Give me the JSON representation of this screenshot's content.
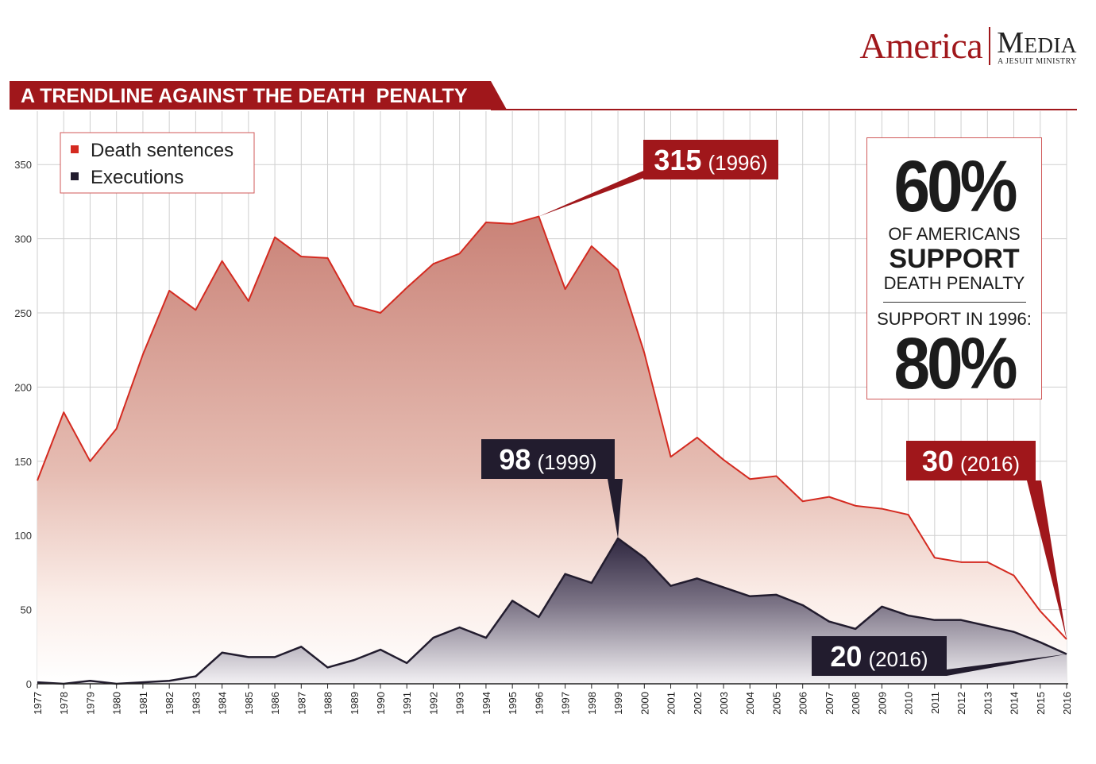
{
  "header": {
    "title": "A TRENDLINE AGAINST THE DEATH  PENALTY",
    "brand_name": "America",
    "brand_media": "Media",
    "brand_subtitle": "A JESUIT MINISTRY"
  },
  "stats": {
    "big_percent": "60%",
    "line1": "OF AMERICANS",
    "line2": "SUPPORT",
    "line3": "DEATH PENALTY",
    "line4": "SUPPORT IN 1996:",
    "big_percent_1996": "80%"
  },
  "colors": {
    "sentences": "#d42a20",
    "executions": "#221c2e",
    "brand": "#a0171b",
    "grid": "#cfcfcf"
  },
  "chart_data": {
    "type": "area",
    "title": "A TRENDLINE AGAINST THE DEATH  PENALTY",
    "xlabel": "",
    "ylabel": "",
    "ylim": [
      0,
      370
    ],
    "yticks": [
      0,
      50,
      100,
      150,
      200,
      250,
      300,
      350
    ],
    "grid": true,
    "legend_position": "top-left",
    "x": [
      1977,
      1978,
      1979,
      1980,
      1981,
      1982,
      1983,
      1984,
      1985,
      1986,
      1987,
      1988,
      1989,
      1990,
      1991,
      1992,
      1993,
      1994,
      1995,
      1996,
      1997,
      1998,
      1999,
      2000,
      2001,
      2002,
      2003,
      2004,
      2005,
      2006,
      2007,
      2008,
      2009,
      2010,
      2011,
      2012,
      2013,
      2014,
      2015,
      2016
    ],
    "series": [
      {
        "name": "Death sentences",
        "values": [
          137,
          183,
          150,
          172,
          222,
          265,
          252,
          285,
          258,
          301,
          288,
          287,
          255,
          250,
          267,
          283,
          290,
          311,
          310,
          315,
          266,
          295,
          279,
          223,
          153,
          166,
          151,
          138,
          140,
          123,
          126,
          120,
          118,
          114,
          85,
          82,
          82,
          73,
          49,
          30
        ]
      },
      {
        "name": "Executions",
        "values": [
          1,
          0,
          2,
          0,
          1,
          2,
          5,
          21,
          18,
          18,
          25,
          11,
          16,
          23,
          14,
          31,
          38,
          31,
          56,
          45,
          74,
          68,
          98,
          85,
          66,
          71,
          65,
          59,
          60,
          53,
          42,
          37,
          52,
          46,
          43,
          43,
          39,
          35,
          28,
          20
        ]
      }
    ],
    "annotations": [
      {
        "value": "315",
        "label": "(1996)",
        "series": "Death sentences",
        "x": 1996,
        "y": 315
      },
      {
        "value": "98",
        "label": "(1999)",
        "series": "Executions",
        "x": 1999,
        "y": 98
      },
      {
        "value": "30",
        "label": "(2016)",
        "series": "Death sentences",
        "x": 2016,
        "y": 30
      },
      {
        "value": "20",
        "label": "(2016)",
        "series": "Executions",
        "x": 2016,
        "y": 20
      }
    ]
  }
}
